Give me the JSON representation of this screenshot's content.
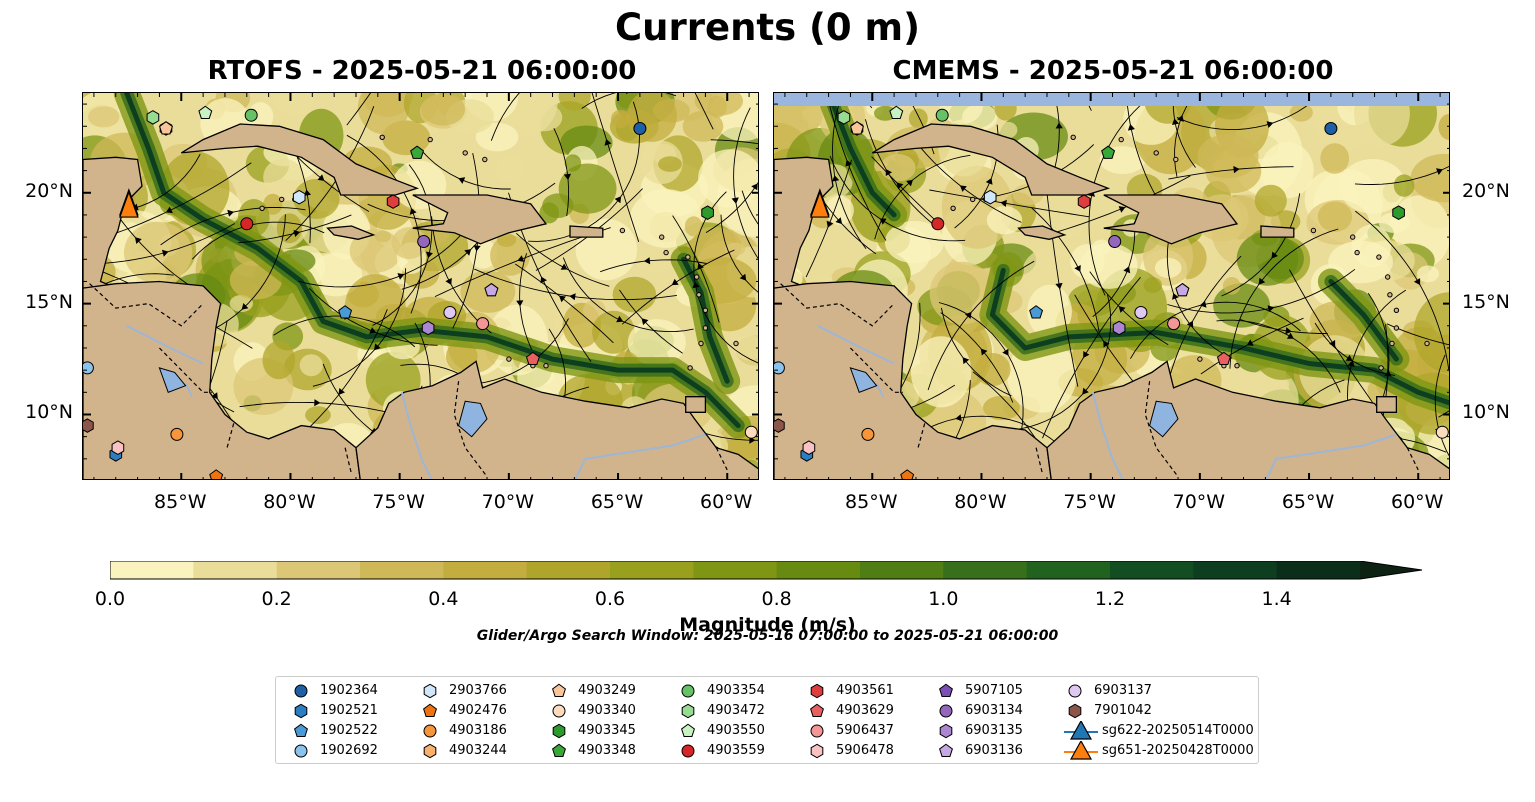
{
  "figure": {
    "title": "Currents (0 m)",
    "search_window": "Glider/Argo Search Window: 2025-05-16 07:00:00 to 2025-05-21 06:00:00"
  },
  "maps": [
    {
      "id": "left",
      "title": "RTOFS - 2025-05-21 06:00:00"
    },
    {
      "id": "right",
      "title": "CMEMS - 2025-05-21 06:00:00"
    }
  ],
  "axes": {
    "lon_range": [
      -89.5,
      -58.5
    ],
    "lat_range": [
      7.0,
      24.5
    ],
    "lon_ticks": [
      -85,
      -80,
      -75,
      -70,
      -65,
      -60
    ],
    "lon_tick_labels": [
      "85°W",
      "80°W",
      "75°W",
      "70°W",
      "65°W",
      "60°W"
    ],
    "lat_ticks": [
      10,
      15,
      20
    ],
    "lat_tick_labels": [
      "10°N",
      "15°N",
      "20°N"
    ]
  },
  "colorbar": {
    "label": "Magnitude (m/s)",
    "min": 0.0,
    "max": 1.5,
    "ticks": [
      0.0,
      0.2,
      0.4,
      0.6,
      0.8,
      1.0,
      1.2,
      1.4
    ],
    "tick_labels": [
      "0.0",
      "0.2",
      "0.4",
      "0.6",
      "0.8",
      "1.0",
      "1.2",
      "1.4"
    ],
    "colors": [
      "#fbf3be",
      "#eadd9a",
      "#dcc776",
      "#cfb857",
      "#c3ad3f",
      "#b0a52b",
      "#98a01e",
      "#7f9614",
      "#678b11",
      "#4f7f14",
      "#376f1a",
      "#22621f",
      "#134e22",
      "#0c3e1f",
      "#0b2e1a",
      "#0d2213"
    ],
    "extend": "max"
  },
  "legend": {
    "items": [
      {
        "label": "1902364",
        "marker": "circle",
        "color": "#1f5fa6"
      },
      {
        "label": "1902521",
        "marker": "hexagon",
        "color": "#2b7fc0"
      },
      {
        "label": "1902522",
        "marker": "pentagon",
        "color": "#4a9ad6"
      },
      {
        "label": "1902692",
        "marker": "circle",
        "color": "#8cc3ec"
      },
      {
        "label": "2903766",
        "marker": "hexagon",
        "color": "#cfe6fb"
      },
      {
        "label": "4902476",
        "marker": "pentagon",
        "color": "#ee7411"
      },
      {
        "label": "4903186",
        "marker": "circle",
        "color": "#f6953a"
      },
      {
        "label": "4903244",
        "marker": "hexagon",
        "color": "#f9b26e"
      },
      {
        "label": "4903249",
        "marker": "pentagon",
        "color": "#fbc59a"
      },
      {
        "label": "4903340",
        "marker": "circle",
        "color": "#fddcbd"
      },
      {
        "label": "4903345",
        "marker": "hexagon",
        "color": "#2c9a2c"
      },
      {
        "label": "4903348",
        "marker": "pentagon",
        "color": "#38a838"
      },
      {
        "label": "4903354",
        "marker": "circle",
        "color": "#67c267"
      },
      {
        "label": "4903472",
        "marker": "hexagon",
        "color": "#98dc93"
      },
      {
        "label": "4903550",
        "marker": "pentagon",
        "color": "#c9f2c2"
      },
      {
        "label": "4903559",
        "marker": "circle",
        "color": "#d62728"
      },
      {
        "label": "4903561",
        "marker": "hexagon",
        "color": "#dd3f3f"
      },
      {
        "label": "4903629",
        "marker": "pentagon",
        "color": "#e86060"
      },
      {
        "label": "5906437",
        "marker": "circle",
        "color": "#f29696"
      },
      {
        "label": "5906478",
        "marker": "hexagon",
        "color": "#f9c3c3"
      },
      {
        "label": "5907105",
        "marker": "pentagon",
        "color": "#7b4fb5"
      },
      {
        "label": "6903134",
        "marker": "circle",
        "color": "#9467bd"
      },
      {
        "label": "6903135",
        "marker": "hexagon",
        "color": "#ac86d2"
      },
      {
        "label": "6903136",
        "marker": "pentagon",
        "color": "#c6a8e4"
      },
      {
        "label": "6903137",
        "marker": "circle",
        "color": "#dfc9f3"
      },
      {
        "label": "7901042",
        "marker": "hexagon",
        "color": "#8c564b"
      },
      {
        "label": "sg622-20250514T0000",
        "marker": "triangle",
        "color": "#1f77b4"
      },
      {
        "label": "sg651-20250428T0000",
        "marker": "triangle",
        "color": "#ff7f0e"
      }
    ]
  },
  "floats": [
    {
      "id": "1902364",
      "lon": -64.0,
      "lat": 22.9,
      "in_right": true
    },
    {
      "id": "1902521",
      "lon": -88.0,
      "lat": 8.2,
      "in_right": true
    },
    {
      "id": "1902522",
      "lon": -77.5,
      "lat": 14.6,
      "in_right": true
    },
    {
      "id": "1902692",
      "lon": -89.3,
      "lat": 12.1,
      "in_right": true
    },
    {
      "id": "2903766",
      "lon": -79.6,
      "lat": 19.8,
      "in_right": true
    },
    {
      "id": "4902476",
      "lon": -83.4,
      "lat": 7.2,
      "in_right": true
    },
    {
      "id": "4903186",
      "lon": -85.2,
      "lat": 9.1,
      "in_right": true
    },
    {
      "id": "4903244",
      "lon": -85.7,
      "lat": 22.9,
      "in_right": true
    },
    {
      "id": "4903249",
      "lon": -85.7,
      "lat": 22.9,
      "in_right": true
    },
    {
      "id": "4903340",
      "lon": -58.9,
      "lat": 9.2,
      "in_right": true
    },
    {
      "id": "4903345",
      "lon": -60.9,
      "lat": 19.1,
      "in_right": true
    },
    {
      "id": "4903348",
      "lon": -74.2,
      "lat": 21.8,
      "in_right": true
    },
    {
      "id": "4903354",
      "lon": -81.8,
      "lat": 23.5,
      "in_right": true
    },
    {
      "id": "4903472",
      "lon": -86.3,
      "lat": 23.4,
      "in_right": true
    },
    {
      "id": "4903550",
      "lon": -83.9,
      "lat": 23.6,
      "in_right": true
    },
    {
      "id": "4903559",
      "lon": -82.0,
      "lat": 18.6,
      "in_right": true
    },
    {
      "id": "4903561",
      "lon": -75.3,
      "lat": 19.6,
      "in_right": true
    },
    {
      "id": "4903629",
      "lon": -68.9,
      "lat": 12.5,
      "in_right": true
    },
    {
      "id": "5906437",
      "lon": -71.2,
      "lat": 14.1,
      "in_right": true
    },
    {
      "id": "5906478",
      "lon": -87.9,
      "lat": 8.5,
      "in_right": true
    },
    {
      "id": "5907105",
      "lon": -70.8,
      "lat": 15.6,
      "in_right": true
    },
    {
      "id": "6903134",
      "lon": -73.9,
      "lat": 17.8,
      "in_right": true
    },
    {
      "id": "6903135",
      "lon": -73.7,
      "lat": 13.9,
      "in_right": true
    },
    {
      "id": "6903136",
      "lon": -70.8,
      "lat": 15.6,
      "in_right": true
    },
    {
      "id": "6903137",
      "lon": -72.7,
      "lat": 14.6,
      "in_right": true
    },
    {
      "id": "7901042",
      "lon": -89.3,
      "lat": 9.5,
      "in_right": true
    },
    {
      "id": "sg622-20250514T0000",
      "lon": -87.4,
      "lat": 19.5,
      "in_right": true
    },
    {
      "id": "sg651-20250428T0000",
      "lon": -87.4,
      "lat": 19.4,
      "in_right": true
    }
  ]
}
